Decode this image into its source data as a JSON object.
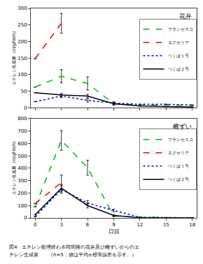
{
  "chart_data": [
    {
      "type": "line",
      "title": "花弁",
      "ylabel": "エチレン生成量  (nl/gFW/h)",
      "x": [
        0,
        3,
        6,
        9,
        12,
        15,
        18
      ],
      "xlim": [
        -0.5,
        18.5
      ],
      "xticks": [
        0,
        3,
        6,
        9,
        12,
        15,
        18
      ],
      "ylim": [
        0,
        300
      ],
      "yticks": [
        0,
        50,
        100,
        150,
        200,
        250,
        300
      ],
      "grid": false,
      "legend": "upper right",
      "tick_labels": "y",
      "series": [
        {
          "name": "フランセスコ",
          "color": "#00bb00",
          "line_style": "dashed",
          "values": [
            62,
            95,
            73,
            12,
            8,
            8,
            7
          ],
          "yerr": [
            0,
            20,
            20,
            5,
            0,
            0,
            0
          ]
        },
        {
          "name": "エクセリア",
          "color": "#ff0000",
          "line_style": "dashed",
          "values": [
            148,
            255,
            null,
            null,
            null,
            null,
            null
          ],
          "yerr": [
            0,
            30,
            0,
            0,
            0,
            0,
            0
          ]
        },
        {
          "name": "つくば１号",
          "color": "#0000ff",
          "line_style": "dotted",
          "values": [
            18,
            35,
            22,
            14,
            10,
            10,
            8
          ],
          "yerr": [
            0,
            5,
            5,
            3,
            0,
            0,
            0
          ]
        },
        {
          "name": "つくば２号",
          "color": "#000000",
          "line_style": "solid",
          "values": [
            45,
            38,
            35,
            12,
            5,
            3,
            2
          ],
          "yerr": [
            0,
            5,
            5,
            3,
            0,
            0,
            0
          ]
        }
      ]
    },
    {
      "type": "line",
      "title": "雌ずい",
      "ylabel": "エチレン生成量  (nl/gFW/h)",
      "xlabel": "日目",
      "x": [
        0,
        3,
        6,
        9,
        12,
        15,
        18
      ],
      "xlim": [
        -0.5,
        18.5
      ],
      "xticks": [
        0,
        3,
        6,
        9,
        12,
        15,
        18
      ],
      "ylim": [
        0,
        800
      ],
      "yticks": [
        0,
        100,
        200,
        300,
        400,
        500,
        600,
        700,
        800
      ],
      "grid": false,
      "legend": "upper right",
      "annotations": [
        "図4　エチレン処理終わ８時間後の花弁及び雌ずいからのエ",
        "チレン生成量　　（n=5，値は平均±標準誤差を示す。）"
      ],
      "series": [
        {
          "name": "フランセスコ",
          "color": "#00bb00",
          "line_style": "dashed",
          "values": [
            90,
            625,
            405,
            15,
            5,
            2,
            1
          ],
          "yerr": [
            0,
            80,
            60,
            5,
            0,
            0,
            0
          ]
        },
        {
          "name": "エクセリア",
          "color": "#ff0000",
          "line_style": "dashed",
          "values": [
            115,
            285,
            null,
            null,
            null,
            null,
            null
          ],
          "yerr": [
            0,
            60,
            0,
            0,
            0,
            0,
            0
          ]
        },
        {
          "name": "つくば１号",
          "color": "#0000ff",
          "line_style": "dotted",
          "values": [
            10,
            230,
            120,
            60,
            5,
            2,
            1
          ],
          "yerr": [
            0,
            30,
            20,
            10,
            0,
            0,
            0
          ]
        },
        {
          "name": "つくば２号",
          "color": "#000000",
          "line_style": "solid",
          "values": [
            25,
            240,
            100,
            20,
            2,
            1,
            0
          ],
          "yerr": [
            0,
            30,
            20,
            5,
            0,
            0,
            0
          ]
        }
      ]
    }
  ]
}
